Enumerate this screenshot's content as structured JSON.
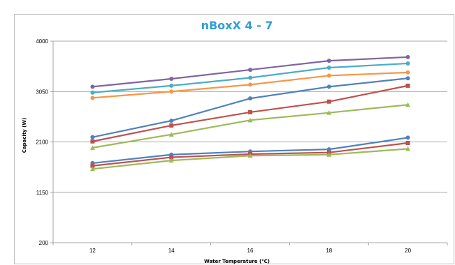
{
  "chart_data": {
    "type": "line",
    "title": "nBoxX 4 - 7",
    "xlabel": "Water Temperature (°C)",
    "ylabel": "Capacity (W)",
    "x": [
      12,
      14,
      16,
      18,
      20
    ],
    "x_ticks": [
      "12",
      "14",
      "16",
      "18",
      "20"
    ],
    "y_ticks": [
      "200",
      "1150",
      "2100",
      "3050",
      "4000"
    ],
    "ylim": [
      200,
      4000
    ],
    "grid": "horizontal",
    "legend": "none",
    "series": [
      {
        "color": "#8064a2",
        "marker": "circle",
        "values": [
          3140,
          3290,
          3460,
          3630,
          3700
        ]
      },
      {
        "color": "#4bacc6",
        "marker": "circle",
        "values": [
          3030,
          3160,
          3310,
          3500,
          3580
        ]
      },
      {
        "color": "#f79646",
        "marker": "circle",
        "values": [
          2930,
          3050,
          3180,
          3350,
          3410
        ]
      },
      {
        "color": "#4f81bd",
        "marker": "circle",
        "values": [
          2190,
          2500,
          2920,
          3140,
          3300
        ]
      },
      {
        "color": "#c0504d",
        "marker": "square",
        "values": [
          2110,
          2410,
          2660,
          2860,
          3160
        ]
      },
      {
        "color": "#9bbb59",
        "marker": "triangle",
        "values": [
          1990,
          2240,
          2510,
          2650,
          2800
        ]
      },
      {
        "color": "#4f81bd",
        "marker": "circle",
        "values": [
          1700,
          1860,
          1920,
          1960,
          2180
        ]
      },
      {
        "color": "#c0504d",
        "marker": "square",
        "values": [
          1650,
          1810,
          1870,
          1900,
          2080
        ]
      },
      {
        "color": "#9bbb59",
        "marker": "triangle",
        "values": [
          1590,
          1750,
          1840,
          1860,
          1970
        ]
      }
    ]
  }
}
